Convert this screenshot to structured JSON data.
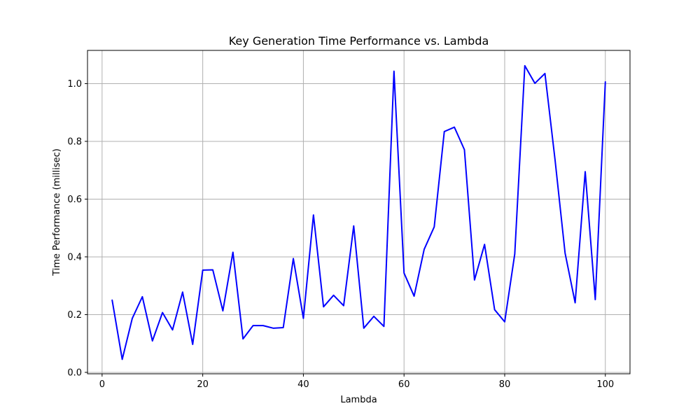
{
  "chart_data": {
    "type": "line",
    "title": "Key Generation Time Performance vs. Lambda",
    "xlabel": "Lambda",
    "ylabel": "Time Performance (millisec)",
    "xlim": [
      -2.9,
      104.9
    ],
    "ylim": [
      -0.005,
      1.115
    ],
    "xticks": [
      0,
      20,
      40,
      60,
      80,
      100
    ],
    "yticks": [
      0.0,
      0.2,
      0.4,
      0.6,
      0.8,
      1.0
    ],
    "xtick_labels": [
      "0",
      "20",
      "40",
      "60",
      "80",
      "100"
    ],
    "ytick_labels": [
      "0.0",
      "0.2",
      "0.4",
      "0.6",
      "0.8",
      "1.0"
    ],
    "grid": true,
    "series": [
      {
        "color": "#0000ff",
        "x": [
          2,
          4,
          6,
          8,
          10,
          12,
          14,
          16,
          18,
          20,
          22,
          24,
          26,
          28,
          30,
          32,
          34,
          36,
          38,
          40,
          42,
          44,
          46,
          48,
          50,
          52,
          54,
          56,
          58,
          60,
          62,
          64,
          66,
          68,
          70,
          72,
          74,
          76,
          78,
          80,
          82,
          84,
          86,
          88,
          90,
          92,
          94,
          96,
          98,
          100
        ],
        "y": [
          0.25,
          0.045,
          0.187,
          0.262,
          0.109,
          0.207,
          0.147,
          0.278,
          0.097,
          0.354,
          0.355,
          0.213,
          0.416,
          0.116,
          0.162,
          0.162,
          0.153,
          0.155,
          0.394,
          0.187,
          0.545,
          0.227,
          0.267,
          0.231,
          0.507,
          0.153,
          0.194,
          0.159,
          1.043,
          0.344,
          0.264,
          0.426,
          0.504,
          0.834,
          0.849,
          0.771,
          0.32,
          0.443,
          0.217,
          0.175,
          0.41,
          1.062,
          1.001,
          1.035,
          0.737,
          0.413,
          0.241,
          0.695,
          0.252,
          1.006
        ]
      }
    ]
  }
}
